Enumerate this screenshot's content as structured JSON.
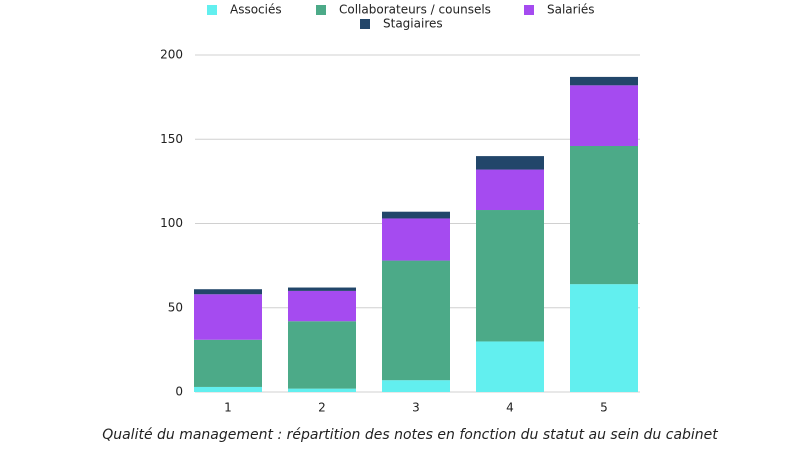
{
  "chart_data": {
    "type": "stacked_bar",
    "title": "Qualité du management : répartition des notes en fonction du statut au sein du cabinet",
    "categories": [
      "1",
      "2",
      "3",
      "4",
      "5"
    ],
    "series": [
      {
        "name": "Associés",
        "color": "#62efef",
        "values": [
          3,
          2,
          7,
          30,
          64
        ]
      },
      {
        "name": "Collaborateurs / counsels",
        "color": "#4caa88",
        "values": [
          28,
          40,
          71,
          78,
          82
        ]
      },
      {
        "name": "Salariés",
        "color": "#a54bf0",
        "values": [
          27,
          18,
          25,
          24,
          36
        ]
      },
      {
        "name": "Stagiaires",
        "color": "#22466a",
        "values": [
          3,
          2,
          4,
          8,
          5
        ]
      }
    ],
    "ylim": [
      0,
      200
    ],
    "yticks": [
      0,
      50,
      100,
      150,
      200
    ],
    "grid": true,
    "legend": "top"
  }
}
